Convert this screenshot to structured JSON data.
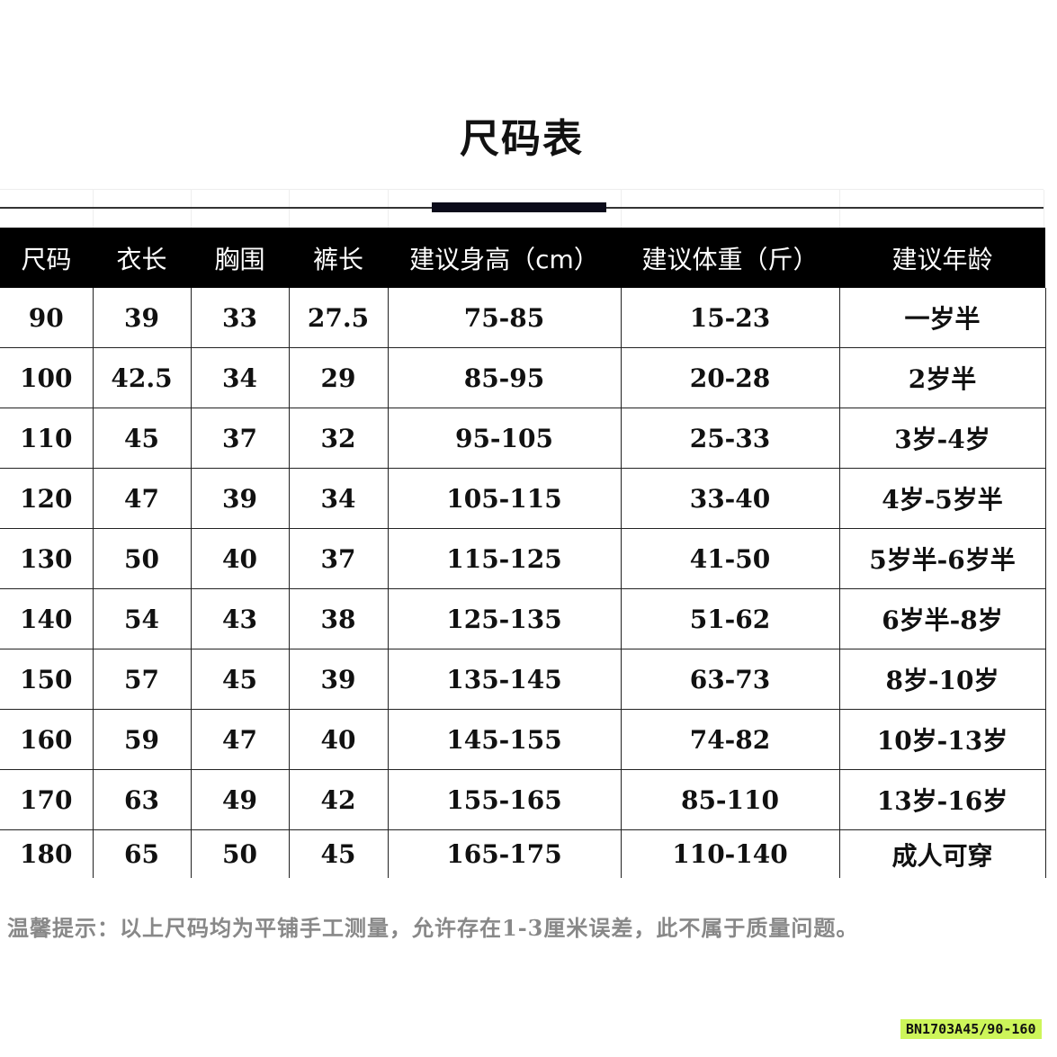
{
  "title": "尺码表",
  "headers": [
    "尺码",
    "衣长",
    "胸围",
    "裤长",
    "建议身高（cm）",
    "建议体重（斤）",
    "建议年龄"
  ],
  "rows": [
    [
      "90",
      "39",
      "33",
      "27.5",
      "75-85",
      "15-23",
      "一岁半"
    ],
    [
      "100",
      "42.5",
      "34",
      "29",
      "85-95",
      "20-28",
      "2岁半"
    ],
    [
      "110",
      "45",
      "37",
      "32",
      "95-105",
      "25-33",
      "3岁-4岁"
    ],
    [
      "120",
      "47",
      "39",
      "34",
      "105-115",
      "33-40",
      "4岁-5岁半"
    ],
    [
      "130",
      "50",
      "40",
      "37",
      "115-125",
      "41-50",
      "5岁半-6岁半"
    ],
    [
      "140",
      "54",
      "43",
      "38",
      "125-135",
      "51-62",
      "6岁半-8岁"
    ],
    [
      "150",
      "57",
      "45",
      "39",
      "135-145",
      "63-73",
      "8岁-10岁"
    ],
    [
      "160",
      "59",
      "47",
      "40",
      "145-155",
      "74-82",
      "10岁-13岁"
    ],
    [
      "170",
      "63",
      "49",
      "42",
      "155-165",
      "85-110",
      "13岁-16岁"
    ],
    [
      "180",
      "65",
      "50",
      "45",
      "165-175",
      "110-140",
      "成人可穿"
    ]
  ],
  "note": "温馨提示：以上尺码均为平铺手工测量，允许存在1-3厘米误差，此不属于质量问题。",
  "product_code": "BN1703A45/90-160",
  "colors": {
    "header_bg": "#000000",
    "code_bg": "#cdf55a"
  }
}
